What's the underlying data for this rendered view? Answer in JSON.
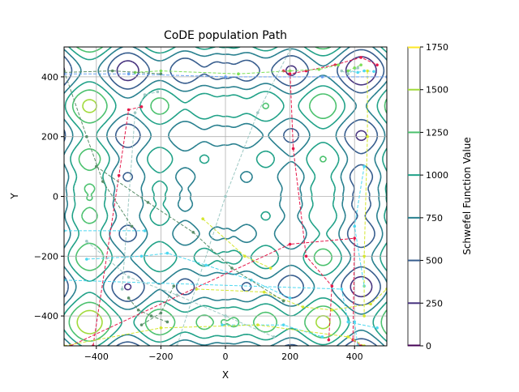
{
  "chart_data": {
    "type": "contour",
    "title": "CoDE population Path",
    "xlabel": "X",
    "ylabel": "Y",
    "xlim": [
      -500,
      500
    ],
    "ylim": [
      -500,
      500
    ],
    "xticks": [
      -400,
      -200,
      0,
      200,
      400
    ],
    "yticks": [
      -400,
      -200,
      0,
      200,
      400
    ],
    "grid": true,
    "function": "Schwefel",
    "colorbar": {
      "label": "Schwefel Function Value",
      "range": [
        0,
        1750
      ],
      "ticks": [
        0,
        250,
        500,
        750,
        1000,
        1250,
        1500,
        1750
      ],
      "colormap": "viridis"
    },
    "contour_levels": [
      0,
      250,
      500,
      750,
      1000,
      1250,
      1500,
      1750
    ],
    "paths": [
      {
        "color": "#e6194b",
        "points": [
          [
            -410,
            -500
          ],
          [
            -330,
            70
          ],
          [
            -300,
            290
          ],
          [
            -260,
            300
          ]
        ]
      },
      {
        "color": "#e6194b",
        "points": [
          [
            -480,
            -500
          ],
          [
            200,
            -160
          ],
          [
            400,
            -140
          ],
          [
            395,
            -480
          ],
          [
            420,
            -500
          ]
        ]
      },
      {
        "color": "#e6194b",
        "points": [
          [
            180,
            420
          ],
          [
            200,
            410
          ],
          [
            250,
            420
          ],
          [
            340,
            440
          ],
          [
            420,
            465
          ],
          [
            470,
            440
          ]
        ]
      },
      {
        "color": "#e6194b",
        "points": [
          [
            200,
            420
          ],
          [
            210,
            160
          ],
          [
            250,
            -200
          ],
          [
            330,
            -300
          ],
          [
            320,
            -480
          ]
        ]
      },
      {
        "color": "#4dd8f0",
        "points": [
          [
            -500,
            -115
          ],
          [
            -250,
            -115
          ]
        ]
      },
      {
        "color": "#4dd8f0",
        "points": [
          [
            -500,
            -280
          ],
          [
            360,
            -310
          ],
          [
            380,
            -420
          ],
          [
            470,
            -440
          ]
        ]
      },
      {
        "color": "#4dd8f0",
        "points": [
          [
            -430,
            -210
          ],
          [
            -260,
            -200
          ],
          [
            -180,
            -190
          ],
          [
            -60,
            -230
          ],
          [
            80,
            -280
          ],
          [
            200,
            -340
          ]
        ]
      },
      {
        "color": "#4dd8f0",
        "points": [
          [
            380,
            420
          ],
          [
            410,
            415
          ],
          [
            430,
            420
          ],
          [
            460,
            418
          ]
        ]
      },
      {
        "color": "#4dd8f0",
        "points": [
          [
            400,
            -420
          ],
          [
            410,
            -500
          ]
        ]
      },
      {
        "color": "#4dd8f0",
        "points": [
          [
            -10,
            -430
          ],
          [
            180,
            -430
          ],
          [
            300,
            -470
          ]
        ]
      },
      {
        "color": "#4dd8f0",
        "points": [
          [
            430,
            100
          ],
          [
            400,
            -100
          ],
          [
            430,
            -300
          ]
        ]
      },
      {
        "color": "#d4e62e",
        "points": [
          [
            -70,
            -75
          ],
          [
            60,
            -200
          ],
          [
            140,
            -240
          ]
        ]
      },
      {
        "color": "#d4e62e",
        "points": [
          [
            -90,
            -310
          ],
          [
            120,
            -320
          ],
          [
            240,
            -370
          ],
          [
            330,
            -380
          ],
          [
            450,
            -360
          ],
          [
            500,
            -310
          ]
        ]
      },
      {
        "color": "#d4e62e",
        "points": [
          [
            -500,
            -500
          ],
          [
            -200,
            -440
          ],
          [
            100,
            -430
          ],
          [
            380,
            -470
          ],
          [
            430,
            -500
          ]
        ]
      },
      {
        "color": "#d4e62e",
        "points": [
          [
            440,
            420
          ],
          [
            440,
            200
          ],
          [
            430,
            -200
          ],
          [
            430,
            -400
          ]
        ]
      },
      {
        "color": "#7ee05a",
        "points": [
          [
            -280,
            415
          ],
          [
            -200,
            420
          ],
          [
            40,
            410
          ],
          [
            200,
            420
          ],
          [
            290,
            425
          ],
          [
            350,
            440
          ]
        ]
      },
      {
        "color": "#7ee05a",
        "points": [
          [
            380,
            420
          ],
          [
            400,
            430
          ],
          [
            420,
            440
          ]
        ]
      },
      {
        "color": "#9ec9c4",
        "points": [
          [
            -320,
            -310
          ],
          [
            -280,
            280
          ],
          [
            -250,
            340
          ],
          [
            -210,
            350
          ]
        ]
      },
      {
        "color": "#9ec9c4",
        "points": [
          [
            -430,
            -150
          ],
          [
            -300,
            -270
          ],
          [
            -150,
            -330
          ],
          [
            0,
            -400
          ],
          [
            150,
            -470
          ]
        ]
      },
      {
        "color": "#9ec9c4",
        "points": [
          [
            -150,
            -500
          ],
          [
            0,
            0
          ],
          [
            100,
            280
          ],
          [
            200,
            490
          ]
        ]
      },
      {
        "color": "#9ec9c4",
        "points": [
          [
            360,
            420
          ],
          [
            380,
            410
          ],
          [
            410,
            430
          ]
        ]
      },
      {
        "color": "#5a8f6a",
        "points": [
          [
            -500,
            420
          ],
          [
            -430,
            200
          ],
          [
            -380,
            50
          ],
          [
            -290,
            -100
          ]
        ]
      },
      {
        "color": "#5a8f6a",
        "points": [
          [
            -400,
            100
          ],
          [
            -240,
            -20
          ],
          [
            -100,
            -120
          ],
          [
            20,
            -240
          ],
          [
            180,
            -350
          ]
        ]
      },
      {
        "color": "#5a8f6a",
        "points": [
          [
            -300,
            -340
          ],
          [
            -270,
            -380
          ],
          [
            -230,
            -400
          ],
          [
            -180,
            -420
          ]
        ]
      },
      {
        "color": "#5a8f6a",
        "points": [
          [
            -160,
            -300
          ],
          [
            -200,
            -390
          ],
          [
            -260,
            -430
          ]
        ]
      },
      {
        "color": "#5a8f6a",
        "points": [
          [
            -500,
            415
          ],
          [
            -350,
            420
          ],
          [
            -200,
            410
          ]
        ]
      },
      {
        "color": "#6aa0f0",
        "points": [
          [
            -500,
            410
          ],
          [
            -300,
            410
          ],
          [
            0,
            400
          ],
          [
            300,
            400
          ],
          [
            500,
            400
          ]
        ]
      }
    ]
  }
}
